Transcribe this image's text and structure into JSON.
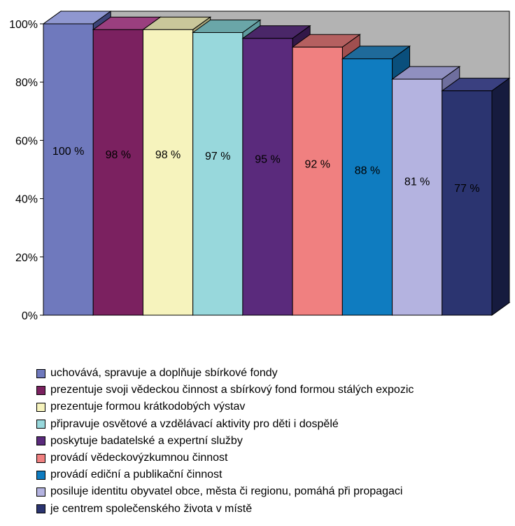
{
  "chart_data": {
    "type": "bar",
    "style": "3d-column",
    "ylim": [
      0,
      100
    ],
    "y_ticks": [
      "0%",
      "20%",
      "40%",
      "60%",
      "80%",
      "100%"
    ],
    "categories": [
      "uchovává, spravuje a doplňuje sbírkové fondy",
      "prezentuje svoji vědeckou činnost a sbírkový fond formou stálých expozic",
      "prezentuje formou krátkodobých výstav",
      "připravuje osvětové a vzdělávací aktivity pro děti i dospělé",
      "poskytuje badatelské a expertní služby",
      "provádí vědeckovýzkumnou činnost",
      "provádí ediční a publikační činnost",
      "posiluje identitu obyvatel obce, města či regionu, pomáhá při propagaci",
      "je centrem společenského života v místě"
    ],
    "values": [
      100,
      98,
      98,
      97,
      95,
      92,
      88,
      81,
      77
    ],
    "data_labels": [
      "100 %",
      "98 %",
      "98 %",
      "97 %",
      "95 %",
      "92 %",
      "88 %",
      "81 %",
      "77 %"
    ],
    "colors": [
      "#6f79bd",
      "#7b2160",
      "#f6f3bd",
      "#98d8dc",
      "#5a2a7c",
      "#f08080",
      "#0f7cc0",
      "#b4b3e0",
      "#2b3470"
    ],
    "side_colors": [
      "#3d4478",
      "#461238",
      "#a8a67a",
      "#5f9a9e",
      "#321748",
      "#a04f4f",
      "#0a4f7c",
      "#6f6f9e",
      "#161b3e"
    ],
    "top_colors": [
      "#8f97d0",
      "#9a3f7f",
      "#c9c79a",
      "#6aa6a8",
      "#4a2768",
      "#b56060",
      "#1f6a9a",
      "#9090c0",
      "#3a4080"
    ],
    "label_colors": [
      "#000000",
      "#000000",
      "#000000",
      "#000000",
      "#000000",
      "#000000",
      "#000000",
      "#000000",
      "#000000"
    ],
    "plot_background": "#b3b3b3",
    "legend_position": "bottom"
  }
}
